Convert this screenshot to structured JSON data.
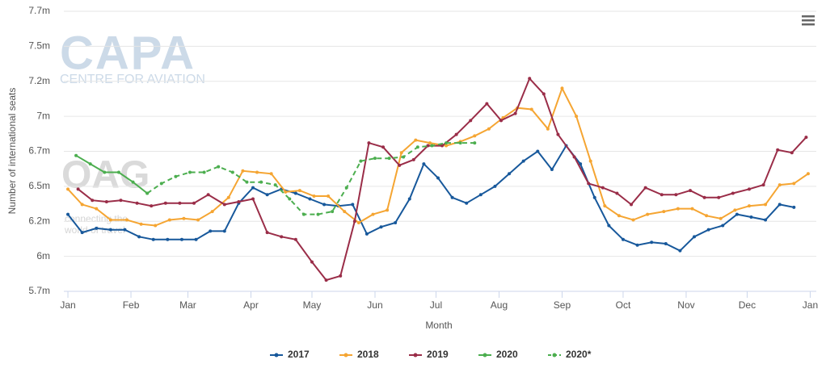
{
  "chart_data": {
    "type": "line",
    "x_label": "Month",
    "y_label": "Number of international seats",
    "watermarks": [
      "CAPA",
      "CENTRE FOR AVIATION",
      "OAG",
      "connecting the",
      "world of travel"
    ],
    "xlim": [
      -2,
      368
    ],
    "xticks": [
      {
        "value": 0,
        "label": "Jan"
      },
      {
        "value": 31,
        "label": "Feb"
      },
      {
        "value": 59,
        "label": "Mar"
      },
      {
        "value": 90,
        "label": "Apr"
      },
      {
        "value": 120,
        "label": "May"
      },
      {
        "value": 151,
        "label": "Jun"
      },
      {
        "value": 181,
        "label": "Jul"
      },
      {
        "value": 212,
        "label": "Aug"
      },
      {
        "value": 243,
        "label": "Sep"
      },
      {
        "value": 273,
        "label": "Oct"
      },
      {
        "value": 304,
        "label": "Nov"
      },
      {
        "value": 334,
        "label": "Dec"
      },
      {
        "value": 365,
        "label": "Jan"
      }
    ],
    "ylim": [
      5.75,
      7.75
    ],
    "yticks": [
      {
        "value": 5.75,
        "label": "5.7m"
      },
      {
        "value": 6,
        "label": "6m"
      },
      {
        "value": 6.25,
        "label": "6.2m"
      },
      {
        "value": 6.5,
        "label": "6.5m"
      },
      {
        "value": 6.75,
        "label": "6.7m"
      },
      {
        "value": 7,
        "label": "7m"
      },
      {
        "value": 7.25,
        "label": "7.2m"
      },
      {
        "value": 7.5,
        "label": "7.5m"
      },
      {
        "value": 7.75,
        "label": "7.7m"
      }
    ],
    "grid": true,
    "legend": "bottom",
    "series": [
      {
        "name": "2017",
        "color": "#17589b",
        "line_style": "solid",
        "x": [
          0,
          7,
          14,
          21,
          28,
          35,
          42,
          49,
          56,
          63,
          70,
          77,
          84,
          91,
          98,
          105,
          112,
          119,
          126,
          133,
          140,
          147,
          154,
          161,
          168,
          175,
          182,
          189,
          196,
          203,
          210,
          217,
          224,
          231,
          238,
          245,
          252,
          259,
          266,
          273,
          280,
          287,
          294,
          301,
          308,
          315,
          322,
          329,
          336,
          343,
          350,
          357
        ],
        "values": [
          6.3,
          6.17,
          6.2,
          6.19,
          6.19,
          6.14,
          6.12,
          6.12,
          6.12,
          6.12,
          6.18,
          6.18,
          6.38,
          6.49,
          6.44,
          6.48,
          6.45,
          6.41,
          6.37,
          6.36,
          6.37,
          6.16,
          6.21,
          6.24,
          6.41,
          6.66,
          6.56,
          6.42,
          6.38,
          6.44,
          6.5,
          6.59,
          6.68,
          6.75,
          6.62,
          6.79,
          6.66,
          6.42,
          6.22,
          6.12,
          6.08,
          6.1,
          6.09,
          6.04,
          6.14,
          6.19,
          6.22,
          6.3,
          6.28,
          6.26,
          6.37,
          6.35
        ]
      },
      {
        "name": "2018",
        "color": "#f5a532",
        "line_style": "solid",
        "x": [
          0,
          7,
          14,
          21,
          29,
          36,
          43,
          50,
          57,
          64,
          71,
          79,
          86,
          93,
          100,
          107,
          114,
          121,
          128,
          136,
          143,
          150,
          157,
          164,
          171,
          178,
          186,
          193,
          200,
          207,
          214,
          221,
          228,
          236,
          243,
          250,
          257,
          264,
          271,
          278,
          285,
          293,
          300,
          307,
          314,
          321,
          328,
          335,
          343,
          350,
          357,
          364
        ],
        "values": [
          6.48,
          6.37,
          6.34,
          6.26,
          6.26,
          6.23,
          6.22,
          6.26,
          6.27,
          6.26,
          6.32,
          6.42,
          6.61,
          6.6,
          6.59,
          6.46,
          6.47,
          6.43,
          6.43,
          6.32,
          6.24,
          6.3,
          6.33,
          6.74,
          6.83,
          6.81,
          6.79,
          6.82,
          6.86,
          6.91,
          6.99,
          7.06,
          7.05,
          6.91,
          7.2,
          7.0,
          6.68,
          6.36,
          6.29,
          6.26,
          6.3,
          6.32,
          6.34,
          6.34,
          6.29,
          6.27,
          6.33,
          6.36,
          6.37,
          6.51,
          6.52,
          6.59
        ]
      },
      {
        "name": "2019",
        "color": "#9a2d48",
        "line_style": "solid",
        "x": [
          5,
          12,
          19,
          26,
          34,
          41,
          48,
          55,
          62,
          69,
          77,
          84,
          91,
          98,
          105,
          112,
          120,
          127,
          134,
          141,
          148,
          155,
          163,
          170,
          177,
          184,
          191,
          198,
          206,
          213,
          220,
          227,
          234,
          241,
          249,
          256,
          263,
          270,
          277,
          284,
          292,
          299,
          306,
          313,
          320,
          327,
          335,
          342,
          349,
          356,
          363
        ],
        "values": [
          6.48,
          6.4,
          6.39,
          6.4,
          6.38,
          6.36,
          6.38,
          6.38,
          6.38,
          6.44,
          6.37,
          6.39,
          6.41,
          6.17,
          6.14,
          6.12,
          5.96,
          5.83,
          5.86,
          6.25,
          6.81,
          6.78,
          6.65,
          6.69,
          6.79,
          6.79,
          6.87,
          6.97,
          7.09,
          6.97,
          7.02,
          7.27,
          7.16,
          6.87,
          6.71,
          6.52,
          6.49,
          6.45,
          6.37,
          6.49,
          6.44,
          6.44,
          6.47,
          6.42,
          6.42,
          6.45,
          6.48,
          6.51,
          6.76,
          6.74,
          6.85
        ]
      },
      {
        "name": "2020",
        "color": "#4cae4f",
        "line_style": "solid",
        "x": [
          4,
          11,
          18,
          25,
          32,
          39
        ],
        "values": [
          6.72,
          6.66,
          6.6,
          6.6,
          6.53,
          6.45
        ]
      },
      {
        "name": "2020*",
        "color": "#4cae4f",
        "line_style": "dashed",
        "x": [
          39,
          46,
          53,
          60,
          67,
          74,
          81,
          88,
          95,
          102,
          109,
          116,
          123,
          130,
          137,
          144,
          151,
          158,
          165,
          172,
          179,
          186,
          193,
          200
        ],
        "values": [
          6.45,
          6.52,
          6.57,
          6.6,
          6.6,
          6.64,
          6.6,
          6.53,
          6.53,
          6.51,
          6.41,
          6.3,
          6.3,
          6.32,
          6.49,
          6.68,
          6.7,
          6.7,
          6.71,
          6.78,
          6.79,
          6.81,
          6.81,
          6.81
        ]
      }
    ]
  }
}
